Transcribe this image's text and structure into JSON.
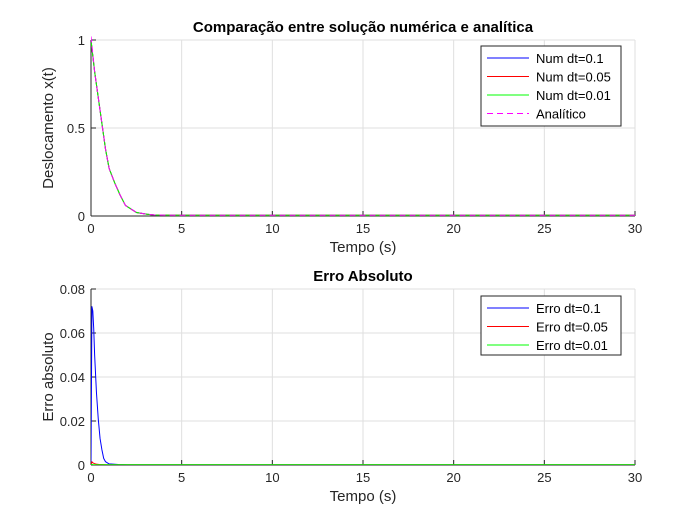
{
  "chart_data": [
    {
      "type": "line",
      "title": "Comparação entre solução numérica e analítica",
      "xlabel": "Tempo (s)",
      "ylabel": "Deslocamento x(t)",
      "xlim": [
        0,
        30
      ],
      "ylim": [
        0,
        1
      ],
      "xticks": [
        "0",
        "5",
        "10",
        "15",
        "20",
        "25",
        "30"
      ],
      "yticks": [
        "0",
        "0.5",
        "1"
      ],
      "grid": true,
      "legend_position": "top-right",
      "series": [
        {
          "name": "Num dt=0.1",
          "color": "#0000ff",
          "style": "solid",
          "x": [
            0,
            0.2,
            0.5,
            0.8,
            1.0,
            1.3,
            1.6,
            1.9,
            2.2,
            2.5,
            2.8,
            3.1,
            3.5,
            4,
            5,
            6,
            8,
            10,
            15,
            20,
            25,
            30
          ],
          "y": [
            1.0,
            0.82,
            0.6,
            0.38,
            0.27,
            0.19,
            0.12,
            0.06,
            0.04,
            0.02,
            0.015,
            0.01,
            0.006,
            0.005,
            0.004,
            0.004,
            0.004,
            0.004,
            0.004,
            0.004,
            0.004,
            0.004
          ]
        },
        {
          "name": "Num dt=0.05",
          "color": "#ff0000",
          "style": "solid",
          "x": [
            0,
            0.2,
            0.5,
            0.8,
            1.0,
            1.3,
            1.6,
            1.9,
            2.2,
            2.5,
            2.8,
            3.1,
            3.5,
            4,
            5,
            6,
            8,
            10,
            15,
            20,
            25,
            30
          ],
          "y": [
            1.0,
            0.82,
            0.6,
            0.38,
            0.27,
            0.19,
            0.12,
            0.06,
            0.04,
            0.02,
            0.015,
            0.01,
            0.006,
            0.005,
            0.004,
            0.004,
            0.004,
            0.004,
            0.004,
            0.004,
            0.004,
            0.004
          ]
        },
        {
          "name": "Num dt=0.01",
          "color": "#00ff00",
          "style": "solid",
          "x": [
            0,
            0.2,
            0.5,
            0.8,
            1.0,
            1.3,
            1.6,
            1.9,
            2.2,
            2.5,
            2.8,
            3.1,
            3.5,
            4,
            5,
            6,
            8,
            10,
            15,
            20,
            25,
            30
          ],
          "y": [
            1.0,
            0.82,
            0.6,
            0.38,
            0.27,
            0.19,
            0.12,
            0.06,
            0.04,
            0.02,
            0.015,
            0.01,
            0.006,
            0.005,
            0.004,
            0.004,
            0.004,
            0.004,
            0.004,
            0.004,
            0.004,
            0.004
          ]
        },
        {
          "name": "Analítico",
          "color": "#ff00ff",
          "style": "dashed",
          "x": [
            0,
            0.2,
            0.5,
            0.8,
            1.0,
            1.3,
            1.6,
            1.9,
            2.2,
            2.5,
            2.8,
            3.1,
            3.5,
            4,
            5,
            6,
            8,
            10,
            15,
            20,
            25,
            30
          ],
          "y": [
            1.02,
            0.82,
            0.6,
            0.38,
            0.27,
            0.19,
            0.12,
            0.06,
            0.04,
            0.02,
            0.015,
            0.01,
            0.006,
            0.005,
            0.004,
            0.004,
            0.004,
            0.004,
            0.004,
            0.004,
            0.004,
            0.004
          ]
        }
      ]
    },
    {
      "type": "line",
      "title": "Erro Absoluto",
      "xlabel": "Tempo (s)",
      "ylabel": "Erro absoluto",
      "xlim": [
        0,
        30
      ],
      "ylim": [
        0,
        0.08
      ],
      "xticks": [
        "0",
        "5",
        "10",
        "15",
        "20",
        "25",
        "30"
      ],
      "yticks": [
        "0",
        "0.02",
        "0.04",
        "0.06",
        "0.08"
      ],
      "grid": true,
      "legend_position": "top-right",
      "series": [
        {
          "name": "Erro dt=0.1",
          "color": "#0000ff",
          "style": "solid",
          "x": [
            0,
            0.05,
            0.1,
            0.15,
            0.2,
            0.3,
            0.4,
            0.5,
            0.6,
            0.7,
            0.8,
            1.0,
            1.5,
            2,
            5,
            10,
            15,
            20,
            25,
            30
          ],
          "y": [
            0.0,
            0.072,
            0.07,
            0.062,
            0.05,
            0.033,
            0.021,
            0.012,
            0.007,
            0.003,
            0.0015,
            0.0005,
            0.0002,
            0.0001,
            0.0001,
            0.0001,
            0.0001,
            0.0001,
            0.0001,
            0.0001
          ]
        },
        {
          "name": "Erro dt=0.05",
          "color": "#ff0000",
          "style": "solid",
          "x": [
            0,
            0.05,
            0.1,
            0.2,
            0.3,
            0.5,
            1,
            5,
            10,
            15,
            20,
            25,
            30
          ],
          "y": [
            0.0,
            0.0015,
            0.001,
            0.0006,
            0.0004,
            0.0002,
            0.0001,
            0.0001,
            0.0001,
            0.0001,
            0.0001,
            0.0001,
            0.0001
          ]
        },
        {
          "name": "Erro dt=0.01",
          "color": "#00ff00",
          "style": "solid",
          "x": [
            0,
            0.05,
            0.1,
            0.2,
            0.5,
            1,
            5,
            10,
            15,
            20,
            25,
            30
          ],
          "y": [
            0.0,
            0.0003,
            0.0002,
            0.0001,
            0.0001,
            0.0001,
            0.0001,
            0.0001,
            0.0001,
            0.0001,
            0.0001,
            0.0001
          ]
        }
      ]
    }
  ]
}
